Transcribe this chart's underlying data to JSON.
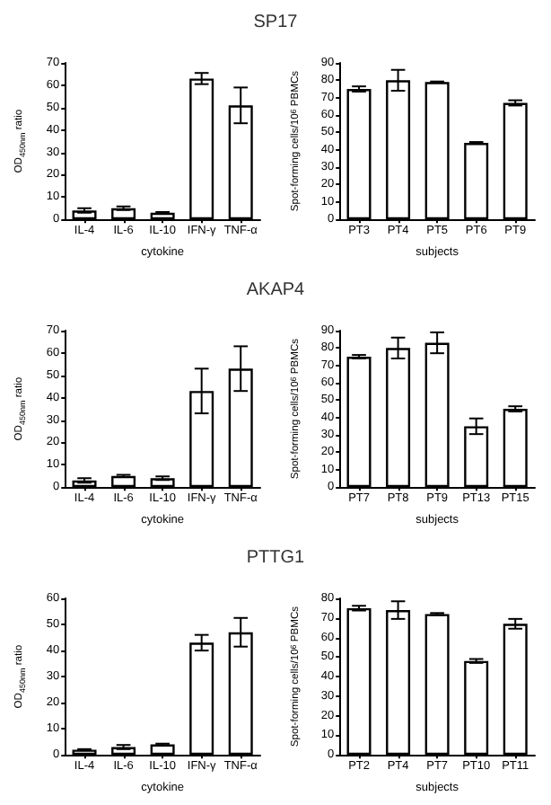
{
  "chart_data": [
    {
      "type": "bar",
      "title": "SP17",
      "xlabel": "cytokine",
      "ylabel": "OD$_{450nm}$ ratio",
      "categories": [
        "IL-4",
        "IL-6",
        "IL-10",
        "IFN-γ",
        "TNF-α"
      ],
      "values": [
        4,
        5,
        3,
        63,
        51
      ],
      "errors": [
        1,
        0.8,
        0.3,
        2.5,
        8
      ],
      "color": "#ffffff",
      "ylim": [
        0,
        70
      ],
      "yticks": [
        0,
        10,
        20,
        30,
        40,
        50,
        60,
        70
      ],
      "grid": false
    },
    {
      "type": "bar",
      "xlabel": "subjects",
      "ylabel": "Spot-forming cells/10$^{6}$ PBMCs",
      "categories": [
        "PT3",
        "PT4",
        "PT5",
        "PT6",
        "PT9"
      ],
      "values": [
        75,
        80,
        79,
        44,
        67
      ],
      "errors": [
        1.5,
        6,
        0.3,
        0.5,
        1.5
      ],
      "color": "#ffffff",
      "ylim": [
        0,
        90
      ],
      "yticks": [
        0,
        10,
        20,
        30,
        40,
        50,
        60,
        70,
        80,
        90
      ],
      "grid": false
    },
    {
      "type": "bar",
      "title": "AKAP4",
      "xlabel": "cytokine",
      "ylabel": "OD$_{450nm}$ ratio",
      "categories": [
        "IL-4",
        "IL-6",
        "IL-10",
        "IFN-γ",
        "TNF-α"
      ],
      "values": [
        3,
        5,
        4,
        43,
        53
      ],
      "errors": [
        1,
        0.5,
        0.8,
        10,
        10
      ],
      "color": "#ffffff",
      "ylim": [
        0,
        70
      ],
      "yticks": [
        0,
        10,
        20,
        30,
        40,
        50,
        60,
        70
      ],
      "grid": false
    },
    {
      "type": "bar",
      "xlabel": "subjects",
      "ylabel": "Spot-forming cells/10$^{6}$ PBMCs",
      "categories": [
        "PT7",
        "PT8",
        "PT9",
        "PT13",
        "PT15"
      ],
      "values": [
        75,
        80,
        83,
        35,
        45
      ],
      "errors": [
        1,
        6,
        6,
        4.5,
        1.5
      ],
      "color": "#ffffff",
      "ylim": [
        0,
        90
      ],
      "yticks": [
        0,
        10,
        20,
        30,
        40,
        50,
        60,
        70,
        80,
        90
      ],
      "grid": false
    },
    {
      "type": "bar",
      "title": "PTTG1",
      "xlabel": "cytokine",
      "ylabel": "OD$_{450nm}$ ratio",
      "categories": [
        "IL-4",
        "IL-6",
        "IL-10",
        "IFN-γ",
        "TNF-α"
      ],
      "values": [
        2,
        3,
        4,
        43,
        47
      ],
      "errors": [
        0.2,
        0.8,
        0.3,
        3,
        5.5
      ],
      "color": "#ffffff",
      "ylim": [
        0,
        60
      ],
      "yticks": [
        0,
        10,
        20,
        30,
        40,
        50,
        60
      ],
      "grid": false
    },
    {
      "type": "bar",
      "xlabel": "subjects",
      "ylabel": "Spot-forming cells/10$^{6}$ PBMCs",
      "categories": [
        "PT2",
        "PT4",
        "PT7",
        "PT10",
        "PT11"
      ],
      "values": [
        75,
        74,
        72,
        48,
        67
      ],
      "errors": [
        1.2,
        4.5,
        0.5,
        1,
        2.5
      ],
      "color": "#ffffff",
      "ylim": [
        0,
        80
      ],
      "yticks": [
        0,
        10,
        20,
        30,
        40,
        50,
        60,
        70,
        80
      ],
      "grid": false
    }
  ]
}
